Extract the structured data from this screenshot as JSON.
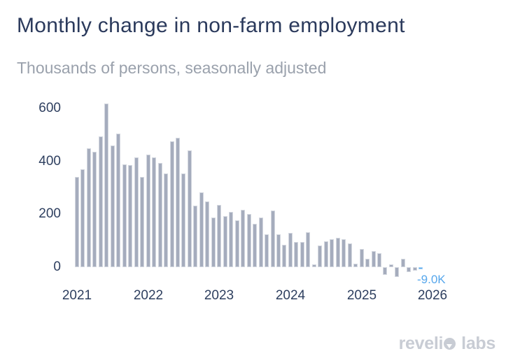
{
  "header": {
    "title": "Monthly change in non-farm employment",
    "subtitle": "Thousands of persons, seasonally adjusted"
  },
  "chart_data": {
    "type": "bar",
    "title": "Monthly change in non-farm employment",
    "subtitle": "Thousands of persons, seasonally adjusted",
    "unit": "thousands of persons, seasonally adjusted",
    "x_start_month": "2021-01",
    "x_tick_labels": [
      "2021",
      "2022",
      "2023",
      "2024",
      "2025",
      "2026"
    ],
    "y_ticks": [
      600,
      400,
      200,
      0
    ],
    "ylim": [
      -60,
      650
    ],
    "grid": false,
    "legend": false,
    "bar_color": "#a5acbd",
    "highlight_color": "#57a7ec",
    "values": [
      340,
      370,
      450,
      435,
      495,
      620,
      460,
      505,
      390,
      385,
      415,
      342,
      425,
      414,
      393,
      355,
      476,
      488,
      354,
      441,
      233,
      282,
      249,
      189,
      235,
      193,
      209,
      176,
      218,
      200,
      165,
      187,
      125,
      214,
      125,
      84,
      130,
      94,
      95,
      133,
      12,
      83,
      98,
      105,
      111,
      105,
      90,
      13,
      70,
      31,
      60,
      52,
      -30,
      12,
      -38,
      32,
      -19,
      -12,
      -9
    ],
    "highlight_last_bar": true,
    "last_value_label": "-9.0K"
  },
  "footer": {
    "brand_text_start": "reveli",
    "brand_text_end": "labs"
  }
}
